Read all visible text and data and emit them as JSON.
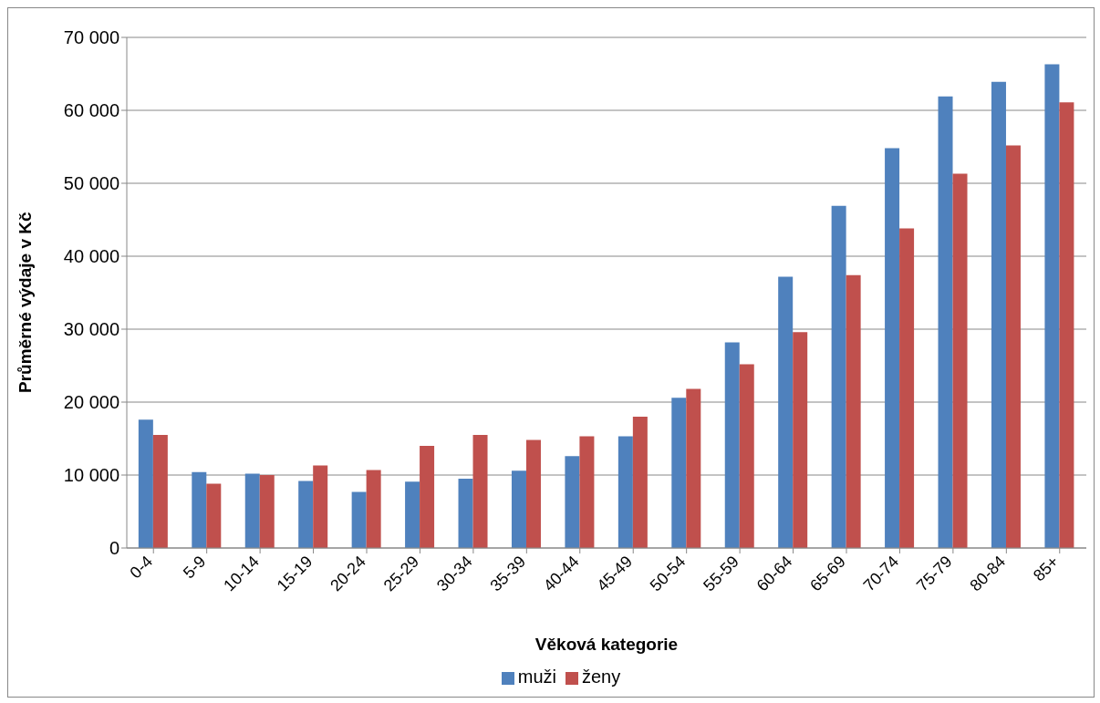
{
  "chart_data": {
    "type": "bar",
    "xlabel": "Věková kategorie",
    "ylabel": "Průměrné výdaje v Kč",
    "categories": [
      "0-4",
      "5-9",
      "10-14",
      "15-19",
      "20-24",
      "25-29",
      "30-34",
      "35-39",
      "40-44",
      "45-49",
      "50-54",
      "55-59",
      "60-64",
      "65-69",
      "70-74",
      "75-79",
      "80-84",
      "85+"
    ],
    "series": [
      {
        "name": "muži",
        "color": "#4f81bd",
        "values": [
          17600,
          10400,
          10200,
          9200,
          7700,
          9100,
          9500,
          10600,
          12600,
          15300,
          20600,
          28200,
          37200,
          46900,
          54800,
          61900,
          63900,
          66300
        ]
      },
      {
        "name": "ženy",
        "color": "#c0504d",
        "values": [
          15500,
          8800,
          10000,
          11300,
          10700,
          14000,
          15500,
          14800,
          15300,
          18000,
          21800,
          25200,
          29600,
          37400,
          43800,
          51300,
          55200,
          61100
        ]
      }
    ],
    "ylim": [
      0,
      70000
    ],
    "yticks": [
      {
        "value": 0,
        "label": "0"
      },
      {
        "value": 10000,
        "label": "10 000"
      },
      {
        "value": 20000,
        "label": "20 000"
      },
      {
        "value": 30000,
        "label": "30 000"
      },
      {
        "value": 40000,
        "label": "40 000"
      },
      {
        "value": 50000,
        "label": "50 000"
      },
      {
        "value": 60000,
        "label": "60 000"
      },
      {
        "value": 70000,
        "label": "70 000"
      }
    ],
    "grid": "y",
    "legend": "bottom"
  }
}
